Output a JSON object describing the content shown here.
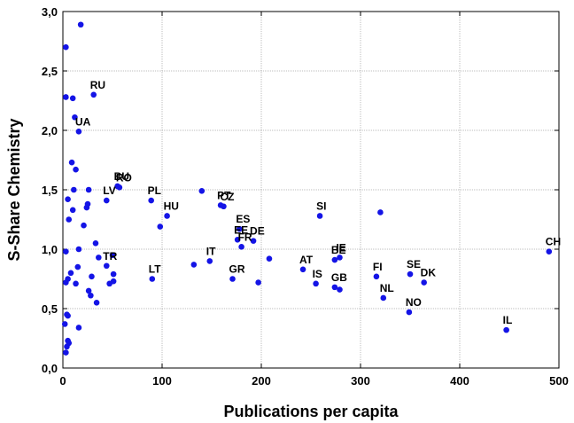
{
  "chart_data": {
    "type": "scatter",
    "title": "",
    "xlabel": "Publications per capita",
    "ylabel": "S-Share Chemistry",
    "xlim": [
      0,
      500
    ],
    "ylim": [
      0,
      3
    ],
    "x_ticks": [
      "0",
      "100",
      "200",
      "300",
      "400",
      "500"
    ],
    "y_ticks": [
      "0,0",
      "0,5",
      "1,0",
      "1,5",
      "2,0",
      "2,5",
      "3,0"
    ],
    "x_tick_values": [
      0,
      100,
      200,
      300,
      400,
      500
    ],
    "y_tick_values": [
      0,
      0.5,
      1.0,
      1.5,
      2.0,
      2.5,
      3.0
    ],
    "grid": true,
    "marker_color": "#1414e6",
    "points": [
      {
        "x": 3,
        "y": 2.7,
        "label": ""
      },
      {
        "x": 18,
        "y": 2.89,
        "label": ""
      },
      {
        "x": 3,
        "y": 2.28,
        "label": ""
      },
      {
        "x": 10,
        "y": 2.27,
        "label": ""
      },
      {
        "x": 31,
        "y": 2.3,
        "label": "RU"
      },
      {
        "x": 12,
        "y": 2.11,
        "label": ""
      },
      {
        "x": 16,
        "y": 1.99,
        "label": "UA"
      },
      {
        "x": 9,
        "y": 1.73,
        "label": ""
      },
      {
        "x": 13,
        "y": 1.67,
        "label": ""
      },
      {
        "x": 11,
        "y": 1.5,
        "label": ""
      },
      {
        "x": 26,
        "y": 1.5,
        "label": ""
      },
      {
        "x": 5,
        "y": 1.42,
        "label": ""
      },
      {
        "x": 25,
        "y": 1.38,
        "label": ""
      },
      {
        "x": 24,
        "y": 1.35,
        "label": ""
      },
      {
        "x": 10,
        "y": 1.33,
        "label": ""
      },
      {
        "x": 6,
        "y": 1.25,
        "label": ""
      },
      {
        "x": 21,
        "y": 1.2,
        "label": ""
      },
      {
        "x": 55,
        "y": 1.53,
        "label": "BU"
      },
      {
        "x": 57,
        "y": 1.52,
        "label": "RO"
      },
      {
        "x": 44,
        "y": 1.41,
        "label": "LV"
      },
      {
        "x": 89,
        "y": 1.41,
        "label": "PL"
      },
      {
        "x": 105,
        "y": 1.28,
        "label": "HU"
      },
      {
        "x": 98,
        "y": 1.19,
        "label": ""
      },
      {
        "x": 140,
        "y": 1.49,
        "label": ""
      },
      {
        "x": 162,
        "y": 1.36,
        "label": "CZ"
      },
      {
        "x": 159,
        "y": 1.37,
        "label": "PT"
      },
      {
        "x": 178,
        "y": 1.17,
        "label": "ES"
      },
      {
        "x": 192,
        "y": 1.07,
        "label": "DE"
      },
      {
        "x": 176,
        "y": 1.08,
        "label": "EE"
      },
      {
        "x": 180,
        "y": 1.02,
        "label": "FR"
      },
      {
        "x": 208,
        "y": 0.92,
        "label": ""
      },
      {
        "x": 148,
        "y": 0.9,
        "label": "IT"
      },
      {
        "x": 132,
        "y": 0.87,
        "label": ""
      },
      {
        "x": 90,
        "y": 0.75,
        "label": "LT"
      },
      {
        "x": 171,
        "y": 0.75,
        "label": "GR"
      },
      {
        "x": 197,
        "y": 0.72,
        "label": ""
      },
      {
        "x": 259,
        "y": 1.28,
        "label": "SI"
      },
      {
        "x": 320,
        "y": 1.31,
        "label": ""
      },
      {
        "x": 279,
        "y": 0.93,
        "label": "IE"
      },
      {
        "x": 274,
        "y": 0.91,
        "label": "BE"
      },
      {
        "x": 242,
        "y": 0.83,
        "label": "AT"
      },
      {
        "x": 255,
        "y": 0.71,
        "label": "IS"
      },
      {
        "x": 274,
        "y": 0.68,
        "label": "GB"
      },
      {
        "x": 279,
        "y": 0.66,
        "label": ""
      },
      {
        "x": 316,
        "y": 0.77,
        "label": "FI"
      },
      {
        "x": 323,
        "y": 0.59,
        "label": "NL"
      },
      {
        "x": 350,
        "y": 0.79,
        "label": "SE"
      },
      {
        "x": 364,
        "y": 0.72,
        "label": "DK"
      },
      {
        "x": 349,
        "y": 0.47,
        "label": "NO"
      },
      {
        "x": 447,
        "y": 0.32,
        "label": "IL"
      },
      {
        "x": 490,
        "y": 0.98,
        "label": "CH"
      },
      {
        "x": 50,
        "y": 0.95,
        "label": ""
      },
      {
        "x": 44,
        "y": 0.86,
        "label": "TR"
      },
      {
        "x": 36,
        "y": 0.93,
        "label": ""
      },
      {
        "x": 33,
        "y": 1.05,
        "label": ""
      },
      {
        "x": 16,
        "y": 1.0,
        "label": ""
      },
      {
        "x": 15,
        "y": 0.85,
        "label": ""
      },
      {
        "x": 51,
        "y": 0.79,
        "label": ""
      },
      {
        "x": 47,
        "y": 0.71,
        "label": ""
      },
      {
        "x": 51,
        "y": 0.73,
        "label": ""
      },
      {
        "x": 29,
        "y": 0.77,
        "label": ""
      },
      {
        "x": 13,
        "y": 0.71,
        "label": ""
      },
      {
        "x": 8,
        "y": 0.8,
        "label": ""
      },
      {
        "x": 5,
        "y": 0.75,
        "label": ""
      },
      {
        "x": 3,
        "y": 0.72,
        "label": ""
      },
      {
        "x": 3,
        "y": 0.98,
        "label": ""
      },
      {
        "x": 26,
        "y": 0.65,
        "label": ""
      },
      {
        "x": 28,
        "y": 0.61,
        "label": ""
      },
      {
        "x": 34,
        "y": 0.55,
        "label": ""
      },
      {
        "x": 4,
        "y": 0.45,
        "label": ""
      },
      {
        "x": 5,
        "y": 0.44,
        "label": ""
      },
      {
        "x": 2,
        "y": 0.37,
        "label": ""
      },
      {
        "x": 16,
        "y": 0.34,
        "label": ""
      },
      {
        "x": 5,
        "y": 0.23,
        "label": ""
      },
      {
        "x": 6,
        "y": 0.21,
        "label": ""
      },
      {
        "x": 4,
        "y": 0.18,
        "label": ""
      },
      {
        "x": 3,
        "y": 0.13,
        "label": ""
      }
    ]
  }
}
